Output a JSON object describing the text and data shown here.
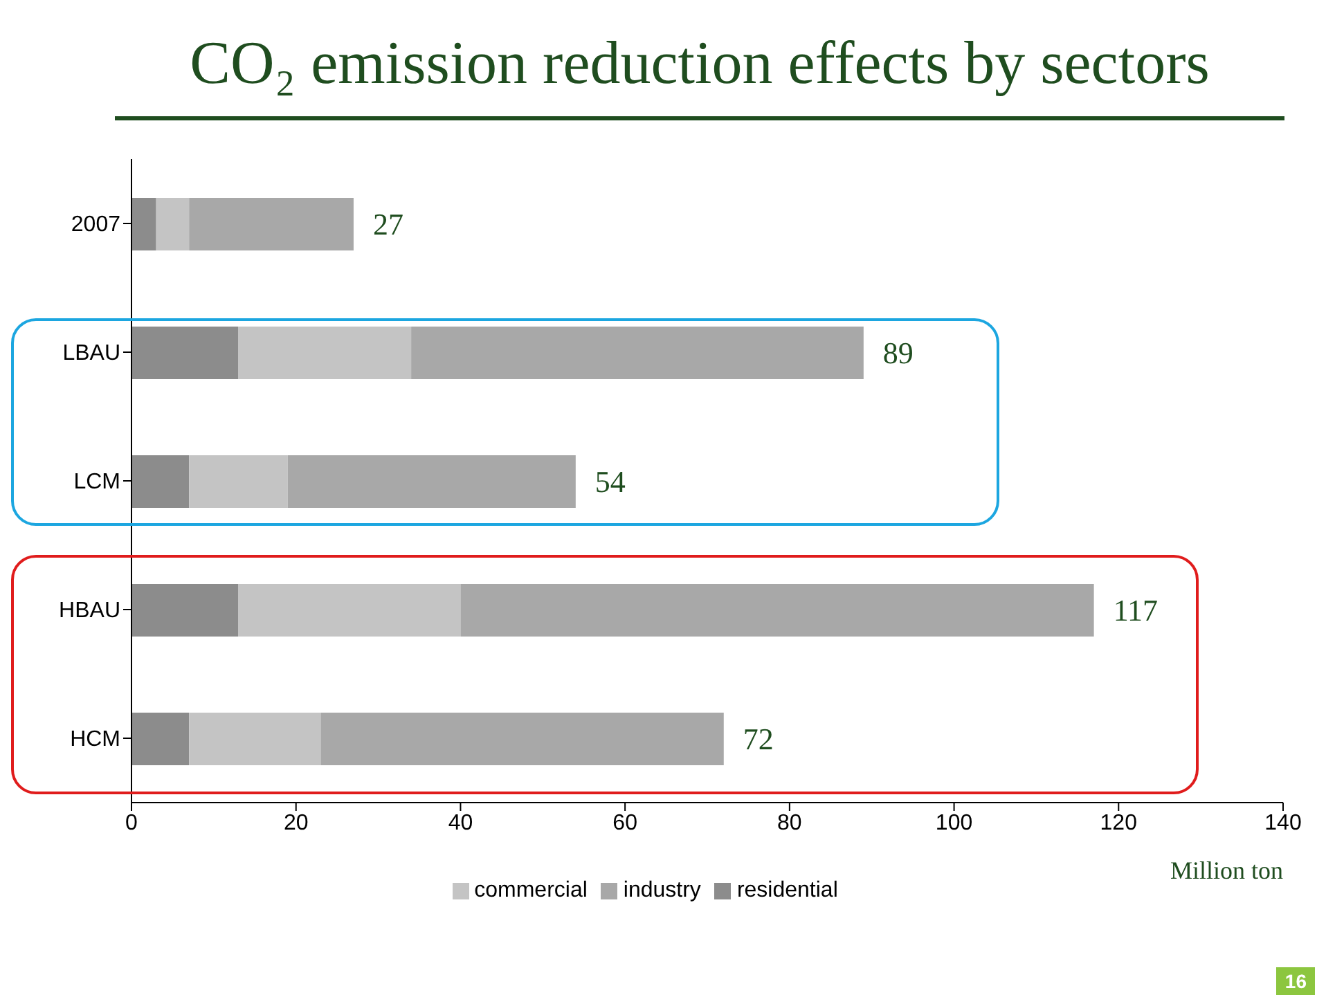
{
  "chart_data": {
    "type": "bar",
    "orientation": "horizontal",
    "stacked": true,
    "title": "CO₂ emission reduction effects by sectors",
    "xlabel": "Million ton",
    "categories": [
      "2007",
      "LBAU",
      "LCM",
      "HBAU",
      "HCM"
    ],
    "series": [
      {
        "name": "residential",
        "color": "#8c8c8c",
        "values": [
          3,
          13,
          7,
          13,
          7
        ]
      },
      {
        "name": "commercial",
        "color": "#c4c4c4",
        "values": [
          4,
          21,
          12,
          27,
          16
        ]
      },
      {
        "name": "industry",
        "color": "#a8a8a8",
        "values": [
          20,
          55,
          35,
          77,
          49
        ]
      }
    ],
    "totals": [
      "27",
      "89",
      "54",
      "117",
      "72"
    ],
    "xlim": [
      0,
      140
    ],
    "xticks": [
      0,
      20,
      40,
      60,
      80,
      100,
      120,
      140
    ],
    "legend": "bottom",
    "grid": false,
    "annotations": [
      "16"
    ]
  }
}
